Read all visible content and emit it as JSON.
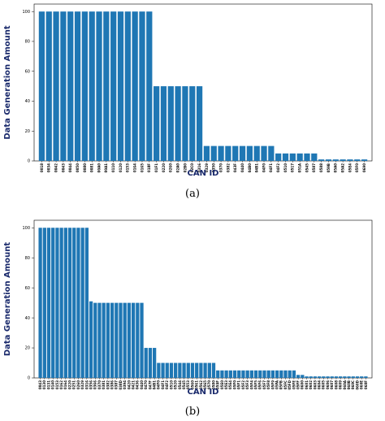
{
  "chart_data": [
    {
      "type": "bar",
      "caption": "(a)",
      "xlabel": "CAN ID",
      "ylabel": "Data Generation Amount",
      "ylim": [
        0,
        105
      ],
      "yticks": [
        0,
        20,
        40,
        60,
        80,
        100
      ],
      "grid": false,
      "color": "#1f77b4",
      "categories": [
        "0018",
        "0034",
        "0042",
        "0043",
        "0044",
        "0050",
        "0080",
        "0081",
        "00A0",
        "00A1",
        "0110",
        "0120",
        "0153",
        "0164",
        "0165",
        "018F",
        "01F1",
        "0220",
        "0260",
        "02A0",
        "02B0",
        "02C0",
        "0316",
        "0329",
        "0350",
        "0370",
        "0382",
        "043F",
        "0440",
        "04B0",
        "04B1",
        "04F0",
        "04F1",
        "04F2",
        "0510",
        "0517",
        "051A",
        "0545",
        "0587",
        "0588",
        "059B",
        "05A0",
        "05A2",
        "05E4",
        "05F0",
        "0690"
      ],
      "values": [
        100,
        100,
        100,
        100,
        100,
        100,
        100,
        100,
        100,
        100,
        100,
        100,
        100,
        100,
        100,
        100,
        50,
        50,
        50,
        50,
        50,
        50,
        50,
        10,
        10,
        10,
        10,
        10,
        10,
        10,
        10,
        10,
        10,
        5,
        5,
        5,
        5,
        5,
        5,
        1,
        1,
        1,
        1,
        1,
        1,
        1
      ]
    },
    {
      "type": "bar",
      "caption": "(b)",
      "xlabel": "CAN ID",
      "ylabel": "Data Generation Amount",
      "ylim": [
        0,
        105
      ],
      "yticks": [
        0,
        20,
        40,
        60,
        80,
        100
      ],
      "grid": false,
      "color": "#1f77b4",
      "categories": [
        "0043",
        "0130",
        "0131",
        "0140",
        "0153",
        "0162",
        "0164",
        "0220",
        "0251",
        "0260",
        "0329",
        "0316",
        "0356",
        "0366",
        "0370",
        "0381",
        "0382",
        "0386",
        "0387",
        "038D",
        "0394",
        "0420",
        "0421",
        "0436",
        "0440",
        "0470",
        "047F",
        "04B1",
        "04F0",
        "04F1",
        "04F2",
        "0510",
        "0520",
        "0544",
        "0545",
        "0553",
        "0560",
        "0561",
        "0562",
        "0565",
        "0570",
        "0580",
        "059F",
        "05E0",
        "05E3",
        "05E4",
        "05F0",
        "05F1",
        "05F2",
        "05F3",
        "05F4",
        "05F5",
        "05F6",
        "05F7",
        "05F8",
        "05F9",
        "05FA",
        "05FB",
        "05FC",
        "05FD",
        "05FE",
        "05FF",
        "0600",
        "0601",
        "0602",
        "0603",
        "0604",
        "0605",
        "0606",
        "0607",
        "0608",
        "0609",
        "060A",
        "060B",
        "060C",
        "060D",
        "060E",
        "060F"
      ],
      "values": [
        100,
        100,
        100,
        100,
        100,
        100,
        100,
        100,
        100,
        100,
        100,
        100,
        51,
        50,
        50,
        50,
        50,
        50,
        50,
        50,
        50,
        50,
        50,
        50,
        50,
        20,
        20,
        20,
        10,
        10,
        10,
        10,
        10,
        10,
        10,
        10,
        10,
        10,
        10,
        10,
        10,
        10,
        5,
        5,
        5,
        5,
        5,
        5,
        5,
        5,
        5,
        5,
        5,
        5,
        5,
        5,
        5,
        5,
        5,
        5,
        5,
        2,
        2,
        1,
        1,
        1,
        1,
        1,
        1,
        1,
        1,
        1,
        1,
        1,
        1,
        1,
        1,
        1
      ]
    }
  ]
}
